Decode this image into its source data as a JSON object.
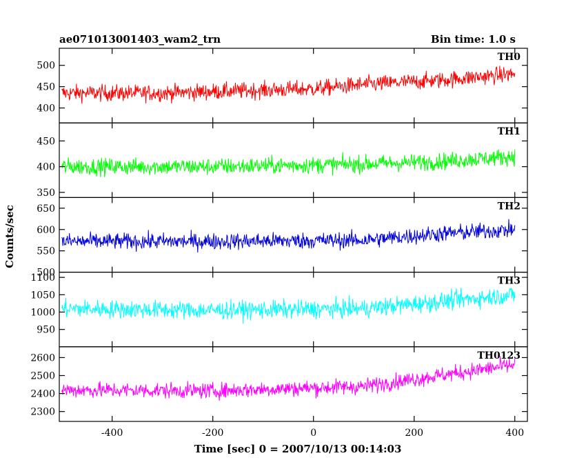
{
  "header": {
    "title": "ae071013001403_wam2_trn",
    "bin_time": "Bin time: 1.0 s"
  },
  "chart_data": {
    "type": "line",
    "title": "ae071013001403_wam2_trn",
    "subtitle": "Bin time: 1.0 s",
    "xlabel": "Time [sec] 0 = 2007/10/13 00:14:03",
    "ylabel": "Counts/sec",
    "xlim": [
      -505,
      425
    ],
    "x_ticks": [
      -400,
      -200,
      0,
      200,
      400
    ],
    "x_range_data": [
      -500,
      400
    ],
    "bin_time_s": 1.0,
    "grid": false,
    "panels": [
      {
        "name": "TH0",
        "color": "#ff0000",
        "ylim": [
          365,
          540
        ],
        "y_ticks": [
          400,
          450,
          500
        ],
        "trend": [
          [
            -500,
            435
          ],
          [
            -300,
            435
          ],
          [
            0,
            445
          ],
          [
            100,
            455
          ],
          [
            250,
            465
          ],
          [
            400,
            480
          ]
        ],
        "noise_amplitude": 33
      },
      {
        "name": "TH1",
        "color": "#00ff00",
        "ylim": [
          340,
          485
        ],
        "y_ticks": [
          350,
          400,
          450
        ],
        "trend": [
          [
            -500,
            400
          ],
          [
            -200,
            400
          ],
          [
            100,
            405
          ],
          [
            250,
            410
          ],
          [
            400,
            420
          ]
        ],
        "noise_amplitude": 28
      },
      {
        "name": "TH2",
        "color": "#0000dd",
        "ylim": [
          500,
          675
        ],
        "y_ticks": [
          500,
          550,
          600,
          650
        ],
        "trend": [
          [
            -500,
            572
          ],
          [
            -200,
            572
          ],
          [
            100,
            575
          ],
          [
            250,
            590
          ],
          [
            400,
            600
          ]
        ],
        "noise_amplitude": 33
      },
      {
        "name": "TH3",
        "color": "#00ffff",
        "ylim": [
          900,
          1115
        ],
        "y_ticks": [
          950,
          1000,
          1050,
          1100
        ],
        "trend": [
          [
            -500,
            1010
          ],
          [
            -200,
            1005
          ],
          [
            100,
            1010
          ],
          [
            250,
            1030
          ],
          [
            400,
            1050
          ]
        ],
        "noise_amplitude": 45
      },
      {
        "name": "TH0123",
        "color": "#ff00ff",
        "ylim": [
          2245,
          2660
        ],
        "y_ticks": [
          2300,
          2400,
          2500,
          2600
        ],
        "trend": [
          [
            -500,
            2420
          ],
          [
            -200,
            2415
          ],
          [
            100,
            2440
          ],
          [
            250,
            2500
          ],
          [
            400,
            2560
          ]
        ],
        "noise_amplitude": 75
      }
    ]
  }
}
